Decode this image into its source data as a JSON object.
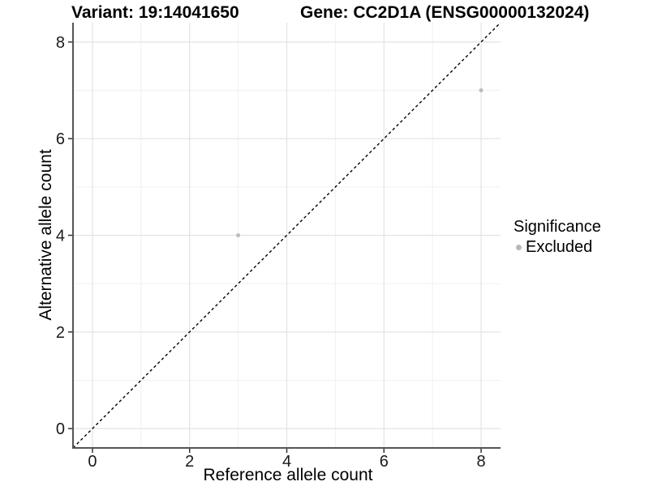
{
  "title": {
    "variant": "Variant: 19:14041650",
    "gene": "Gene: CC2D1A (ENSG00000132024)"
  },
  "legend": {
    "title": "Significance",
    "items": [
      {
        "label": "Excluded",
        "color": "#b9b9b9"
      }
    ]
  },
  "chart_data": {
    "type": "scatter",
    "title_left": "Variant: 19:14041650",
    "title_right": "Gene: CC2D1A (ENSG00000132024)",
    "xlabel": "Reference allele count",
    "ylabel": "Alternative allele count",
    "xlim": [
      -0.4,
      8.4
    ],
    "ylim": [
      -0.4,
      8.4
    ],
    "x_ticks": [
      0,
      2,
      4,
      6,
      8
    ],
    "y_ticks": [
      0,
      2,
      4,
      6,
      8
    ],
    "x_minor_ticks": [
      1,
      3,
      5,
      7
    ],
    "y_minor_ticks": [
      1,
      3,
      5,
      7
    ],
    "grid": "major+minor",
    "legend_position": "right",
    "legend_title": "Significance",
    "series": [
      {
        "name": "Excluded",
        "color": "#bdbdbd",
        "points": [
          {
            "x": 3,
            "y": 4
          },
          {
            "x": 8,
            "y": 7
          }
        ]
      }
    ],
    "reference_line": {
      "kind": "identity y=x",
      "from": -0.4,
      "to": 8.4,
      "style": "dashed",
      "color": "#000000"
    }
  },
  "style": {
    "background": "#ffffff",
    "grid_major_color": "#e3e3e3",
    "grid_minor_color": "#f0f0f0",
    "axis_line_color": "#555555",
    "tick_color": "#333333",
    "tick_label_color": "#1a1a1a",
    "point_color": "#bdbdbd",
    "dash_color": "#000000"
  }
}
